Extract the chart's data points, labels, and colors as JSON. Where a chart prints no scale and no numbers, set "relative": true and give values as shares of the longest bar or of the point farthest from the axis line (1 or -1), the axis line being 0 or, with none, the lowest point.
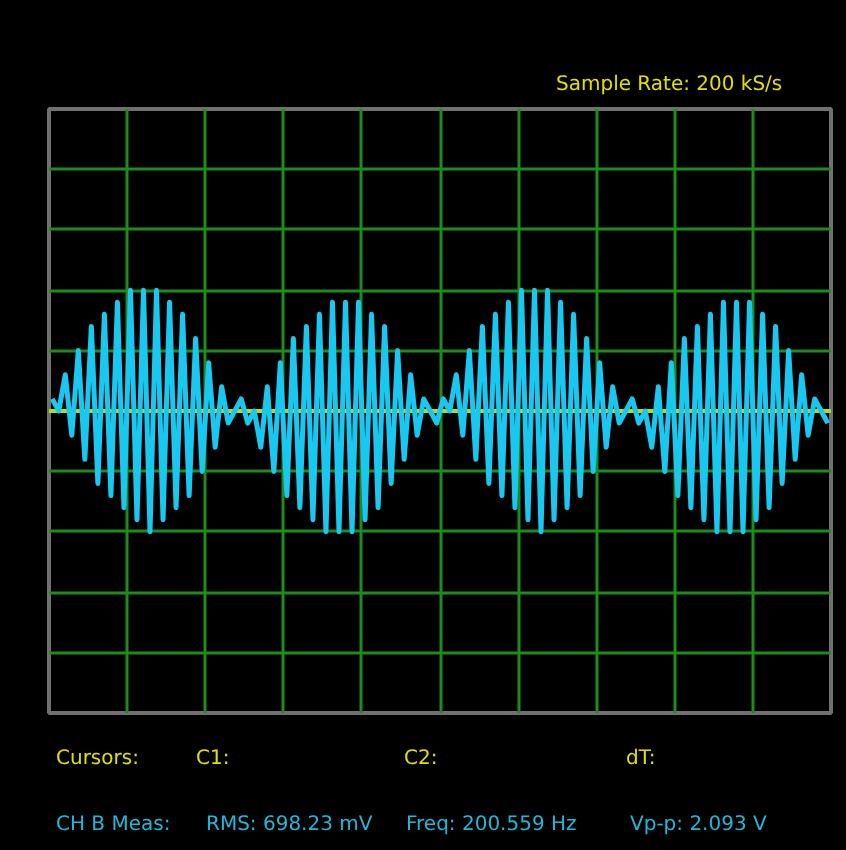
{
  "chart_data": {
    "type": "line",
    "relative": true,
    "grid": true,
    "tick_labels": false,
    "categories": [
      null,
      null,
      null,
      null,
      null,
      null,
      null,
      null,
      null,
      null,
      null,
      null,
      null,
      null,
      null,
      null,
      null,
      null,
      null,
      null,
      null,
      null,
      null,
      null,
      null,
      null,
      null,
      null,
      null,
      null,
      null,
      null,
      null,
      null,
      null,
      null,
      null,
      null,
      null,
      null,
      null,
      null,
      null,
      null,
      null,
      null,
      null,
      null,
      null,
      null,
      null,
      null,
      null,
      null,
      null,
      null,
      null,
      null,
      null,
      null,
      null,
      null,
      null,
      null,
      null,
      null,
      null,
      null,
      null,
      null,
      null,
      null,
      null,
      null,
      null,
      null,
      null,
      null,
      null,
      null,
      null,
      null,
      null,
      null,
      null,
      null,
      null,
      null,
      null,
      null,
      null,
      null,
      null,
      null,
      null,
      null,
      null,
      null,
      null,
      null,
      null,
      null,
      null,
      null,
      null,
      null,
      null,
      null,
      null,
      null,
      null,
      null,
      null,
      null,
      null,
      null,
      null,
      null,
      null,
      null
    ],
    "series": [
      {
        "color": "#19c8f0",
        "values": [
          0.1,
          0.0,
          0.3,
          -0.2,
          0.5,
          -0.4,
          0.7,
          -0.6,
          0.8,
          -0.7,
          0.9,
          -0.8,
          1.0,
          -0.9,
          1.0,
          -1.0,
          1.0,
          -0.9,
          0.9,
          -0.8,
          0.8,
          -0.7,
          0.6,
          -0.5,
          0.4,
          -0.3,
          0.2,
          -0.1,
          0.0,
          0.1,
          -0.1,
          0.0,
          -0.3,
          0.2,
          -0.5,
          0.4,
          -0.7,
          0.6,
          -0.8,
          0.7,
          -0.9,
          0.8,
          -1.0,
          0.9,
          -1.0,
          0.9,
          -1.0,
          0.9,
          -0.9,
          0.8,
          -0.8,
          0.7,
          -0.6,
          0.5,
          -0.4,
          0.3,
          -0.2,
          0.1,
          0.0,
          -0.1,
          0.1,
          0.0,
          0.3,
          -0.2,
          0.5,
          -0.4,
          0.7,
          -0.6,
          0.8,
          -0.7,
          0.9,
          -0.8,
          1.0,
          -0.9,
          1.0,
          -1.0,
          1.0,
          -0.9,
          0.9,
          -0.8,
          0.8,
          -0.7,
          0.6,
          -0.5,
          0.4,
          -0.3,
          0.2,
          -0.1,
          0.0,
          0.1,
          -0.1,
          0.0,
          -0.3,
          0.2,
          -0.5,
          0.4,
          -0.7,
          0.6,
          -0.8,
          0.7,
          -0.9,
          0.8,
          -1.0,
          0.9,
          -1.0,
          0.9,
          -1.0,
          0.9,
          -0.9,
          0.8,
          -0.8,
          0.7,
          -0.6,
          0.5,
          -0.4,
          0.3,
          -0.2,
          0.1,
          0.0,
          -0.1
        ]
      }
    ],
    "ref_lines": [
      {
        "axis": "y",
        "value": 0,
        "color": "#a8e020"
      }
    ],
    "annotations": [
      "Sample Rate:  200 kS/s",
      "Cursors:",
      "C1:",
      "C2:",
      "dT:",
      "CH B Meas:",
      "RMS:  698.23 mV",
      "Freq:  200.559 Hz",
      "Vp-p:  2.093 V"
    ]
  }
}
